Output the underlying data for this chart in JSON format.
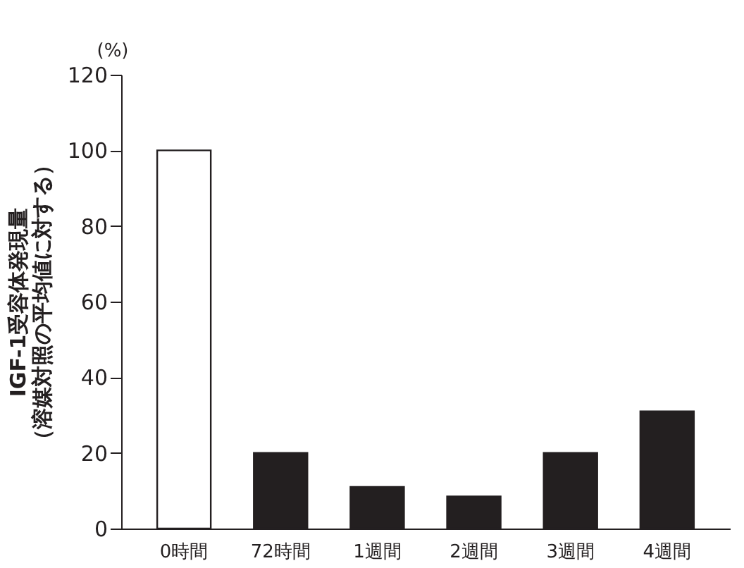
{
  "chart_data": {
    "type": "bar",
    "ylabel": "IGF-1受容体発現量（溶媒対照の平均値に対する）",
    "annotations": [
      "(%)"
    ],
    "categories": [
      "0時間",
      "72時間",
      "1週間",
      "2週間",
      "3週間",
      "4週間"
    ],
    "values": [
      100,
      20,
      11,
      8.5,
      20,
      31
    ],
    "colors": [
      "#ffffff",
      "#231f20",
      "#231f20",
      "#231f20",
      "#231f20",
      "#231f20"
    ],
    "ylim": [
      0,
      120
    ],
    "yticks": [
      0,
      20,
      40,
      60,
      80,
      100,
      120
    ],
    "grid": false
  }
}
